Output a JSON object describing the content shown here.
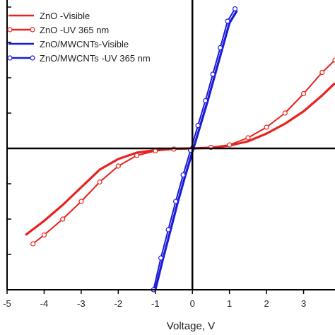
{
  "chart_data": {
    "type": "line",
    "title": "",
    "xlabel": "Voltage, V",
    "ylabel": "",
    "xlim": [
      -5,
      4
    ],
    "ylim": [
      -4,
      4
    ],
    "x_ticks": [
      -5,
      -4,
      -3,
      -2,
      -1,
      0,
      1,
      2,
      3
    ],
    "x_tick_labels": [
      "-5",
      "-4",
      "-3",
      "-2",
      "-1",
      "0",
      "1",
      "2",
      "3"
    ],
    "y_ticks": [
      -4,
      -3,
      -2,
      -1,
      0,
      1,
      2,
      3,
      4
    ],
    "grid": false,
    "legend_position": "top-left",
    "series": [
      {
        "name": "ZnO -Visible",
        "color": "#e8221e",
        "marker": "none",
        "x": [
          -4.5,
          -4.0,
          -3.5,
          -3.0,
          -2.5,
          -2.0,
          -1.5,
          -1.0,
          -0.5,
          0.0,
          0.5,
          1.0,
          1.5,
          2.0,
          2.5,
          3.0,
          3.5,
          3.9
        ],
        "y": [
          -2.45,
          -2.05,
          -1.6,
          -1.1,
          -0.6,
          -0.3,
          -0.12,
          -0.05,
          -0.01,
          0.0,
          0.02,
          0.08,
          0.2,
          0.42,
          0.7,
          1.05,
          1.5,
          1.85
        ]
      },
      {
        "name": "ZnO -UV 365 nm",
        "color": "#e8221e",
        "marker": "open-circle",
        "x": [
          -4.3,
          -4.0,
          -3.5,
          -3.0,
          -2.5,
          -2.0,
          -1.5,
          -1.0,
          -0.5,
          0.0,
          0.5,
          1.0,
          1.5,
          2.0,
          2.5,
          3.0,
          3.5,
          3.9
        ],
        "y": [
          -2.7,
          -2.45,
          -2.0,
          -1.5,
          -0.95,
          -0.5,
          -0.2,
          -0.07,
          -0.02,
          0.0,
          0.03,
          0.1,
          0.3,
          0.6,
          1.0,
          1.55,
          2.15,
          2.5
        ]
      },
      {
        "name": "ZnO/MWCNTs-Visible",
        "color": "#1a1adc",
        "marker": "none",
        "x": [
          -1.0,
          -0.8,
          -0.6,
          -0.4,
          -0.2,
          0.0,
          0.2,
          0.4,
          0.6,
          0.8,
          1.0,
          1.2
        ],
        "y": [
          -4.0,
          -3.15,
          -2.35,
          -1.55,
          -0.8,
          -0.1,
          0.6,
          1.3,
          2.05,
          2.8,
          3.55,
          3.9
        ]
      },
      {
        "name": "ZnO/MWCNTs -UV 365 nm",
        "color": "#1a1adc",
        "marker": "open-circle",
        "x": [
          -1.05,
          -0.85,
          -0.65,
          -0.45,
          -0.25,
          -0.05,
          0.15,
          0.35,
          0.55,
          0.75,
          0.95,
          1.15
        ],
        "y": [
          -4.0,
          -3.1,
          -2.3,
          -1.5,
          -0.75,
          -0.05,
          0.65,
          1.35,
          2.1,
          2.85,
          3.6,
          3.95
        ]
      }
    ]
  }
}
